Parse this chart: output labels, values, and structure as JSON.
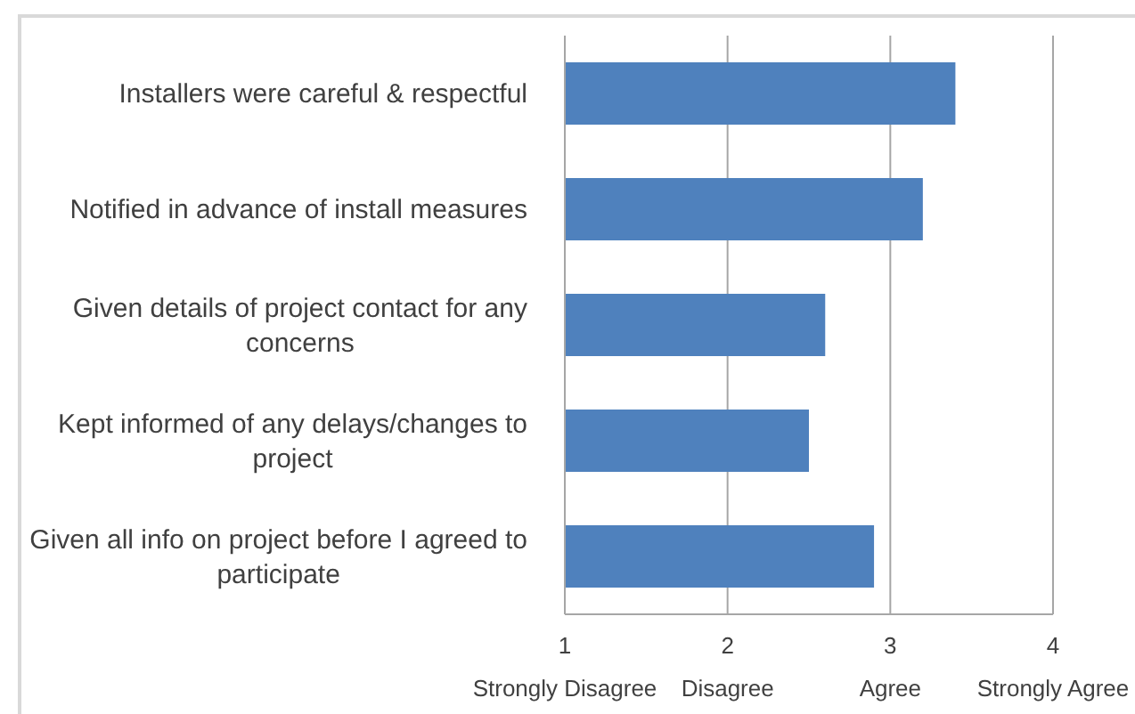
{
  "chart_data": {
    "type": "bar",
    "orientation": "horizontal",
    "categories": [
      "Installers were careful & respectful",
      "Notified in advance of install measures",
      "Given details of project contact for any concerns",
      "Kept informed of any delays/changes to project",
      "Given all info on project before I agreed to participate"
    ],
    "values": [
      3.4,
      3.2,
      2.6,
      2.5,
      2.9
    ],
    "color": "#4f81bd",
    "xlim": [
      1,
      4
    ],
    "xticks": [
      {
        "value": 1,
        "label": "1\nStrongly Disagree"
      },
      {
        "value": 2,
        "label": "2\nDisagree"
      },
      {
        "value": 3,
        "label": "3\nAgree"
      },
      {
        "value": 4,
        "label": "4\nStrongly Agree"
      }
    ],
    "grid": "x"
  }
}
